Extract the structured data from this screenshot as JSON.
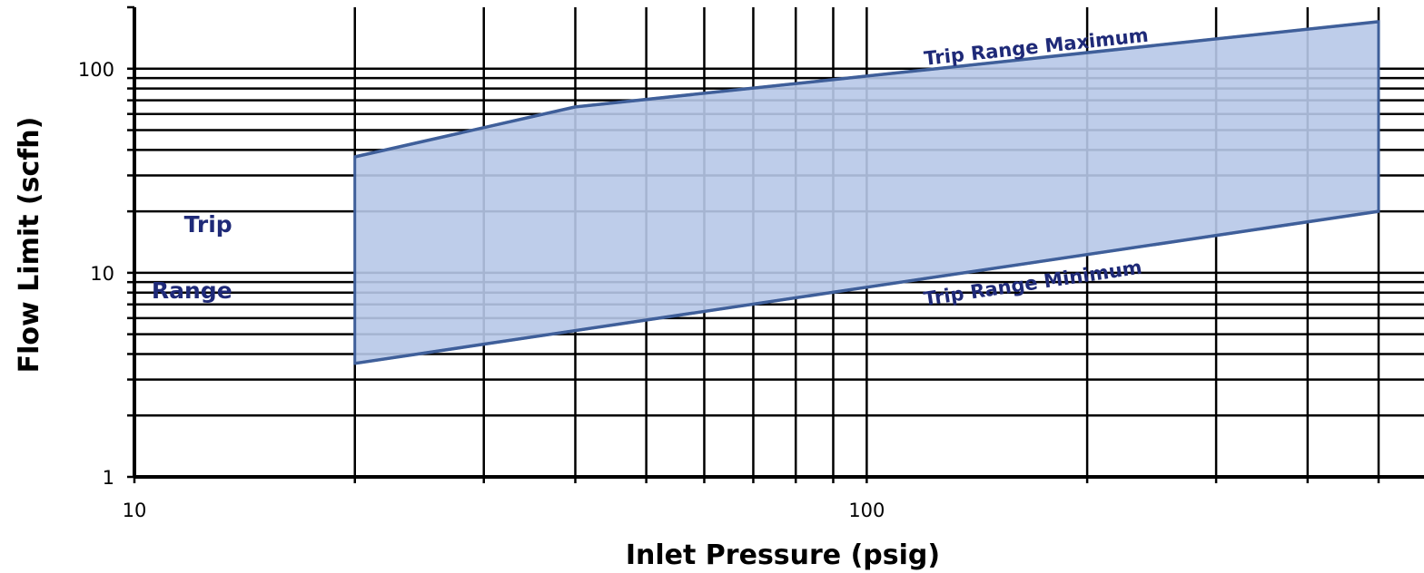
{
  "chart_data": {
    "type": "area",
    "title": "",
    "xlabel": "Inlet Pressure (psig)",
    "ylabel": "Flow Limit (scfh)",
    "x_scale": "log",
    "y_scale": "log",
    "xlim": [
      10,
      500
    ],
    "ylim": [
      1,
      200
    ],
    "grid": true,
    "legend": "none",
    "x_tick_labels": [
      {
        "value": 10,
        "label": "10"
      },
      {
        "value": 100,
        "label": "100"
      }
    ],
    "y_tick_labels": [
      {
        "value": 1,
        "label": "1"
      },
      {
        "value": 10,
        "label": "10"
      },
      {
        "value": 100,
        "label": "100"
      }
    ],
    "x_gridlines": [
      20,
      30,
      40,
      50,
      60,
      70,
      80,
      90,
      100,
      200,
      300,
      400,
      500
    ],
    "y_gridlines": [
      2,
      3,
      4,
      5,
      6,
      7,
      8,
      9,
      10,
      20,
      30,
      40,
      50,
      60,
      70,
      80,
      90,
      100
    ],
    "series": [
      {
        "key": "maximum",
        "x": [
          20,
          40,
          100,
          500
        ],
        "values": [
          37,
          65,
          92,
          170
        ]
      },
      {
        "key": "minimum",
        "x": [
          20,
          100,
          500
        ],
        "values": [
          3.6,
          8.5,
          20
        ]
      }
    ],
    "fill_between": {
      "upper": "maximum",
      "lower": "minimum"
    },
    "annotations": [
      {
        "key": "max",
        "text": "Trip Range Maximum",
        "x": 120,
        "y": 104,
        "rotate": true
      },
      {
        "key": "min",
        "text": "Trip Range Minimum",
        "x": 120,
        "y": 6.9,
        "rotate": true
      },
      {
        "key": "range_1",
        "text": "Trip",
        "x": 13.6,
        "y": 15.8,
        "rotate": false
      },
      {
        "key": "range_2",
        "text": "Range",
        "x": 13.6,
        "y": 7.5,
        "rotate": false
      }
    ],
    "colors": {
      "fill": "#b7c8e8",
      "edge": "#3f5f9a",
      "annotation": "#1f2a78",
      "grid": "#000000"
    }
  }
}
